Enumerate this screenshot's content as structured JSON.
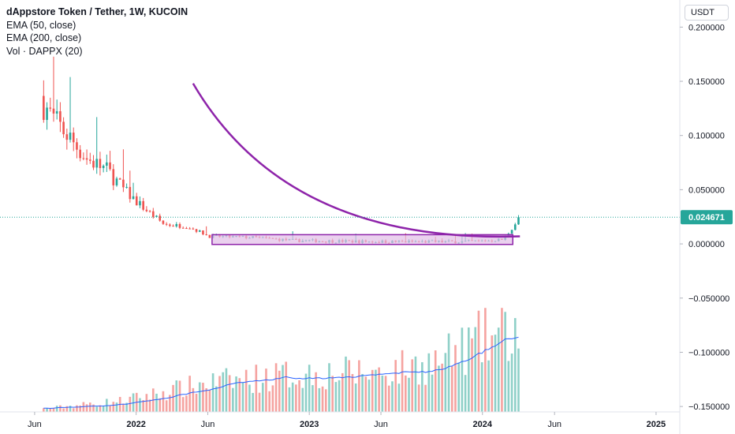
{
  "header": {
    "title": "dAppstore Token / Tether, 1W, KUCOIN",
    "indicators": [
      "EMA (50, close)",
      "EMA (200, close)",
      "Vol · DAPPX (20)"
    ],
    "currency_button": "USDT"
  },
  "colors": {
    "up": "#26a69a",
    "down": "#ef5350",
    "volume_up": "#8fd0c8",
    "volume_down": "#f5a3a0",
    "volume_ma": "#2962ff",
    "curve": "#8e24aa",
    "box_fill": "#e1bee7",
    "box_stroke": "#8e24aa",
    "last_price": "#26a69a"
  },
  "chart_data": {
    "type": "candlestick",
    "ylim": [
      -0.155,
      0.225
    ],
    "y_ticks": [
      "0.200000",
      "0.150000",
      "0.100000",
      "0.050000",
      "0.000000",
      "−0.050000",
      "−0.100000",
      "−0.150000"
    ],
    "y_tick_values": [
      0.2,
      0.15,
      0.1,
      0.05,
      0.0,
      -0.05,
      -0.1,
      -0.15
    ],
    "x_ticks": [
      {
        "label": "Jun",
        "date": "2021-06-01",
        "bold": false
      },
      {
        "label": "2022",
        "date": "2022-01-01",
        "bold": true
      },
      {
        "label": "Jun",
        "date": "2022-06-01",
        "bold": false
      },
      {
        "label": "2023",
        "date": "2023-01-01",
        "bold": true
      },
      {
        "label": "Jun",
        "date": "2023-06-01",
        "bold": false
      },
      {
        "label": "2024",
        "date": "2024-01-01",
        "bold": true
      },
      {
        "label": "Jun",
        "date": "2024-06-01",
        "bold": false
      },
      {
        "label": "2025",
        "date": "2025-01-01",
        "bold": true
      }
    ],
    "x_range": [
      "2021-03-20",
      "2025-02-20"
    ],
    "last_price": "0.024671",
    "last_price_value": 0.024671,
    "price_anchors": [
      {
        "date": "2021-06-20",
        "close": 0.13
      },
      {
        "date": "2021-07-10",
        "close": 0.115
      },
      {
        "date": "2021-08-10",
        "close": 0.1
      },
      {
        "date": "2021-09-20",
        "close": 0.078
      },
      {
        "date": "2021-11-01",
        "close": 0.068
      },
      {
        "date": "2021-12-10",
        "close": 0.048
      },
      {
        "date": "2022-01-20",
        "close": 0.032
      },
      {
        "date": "2022-03-01",
        "close": 0.018
      },
      {
        "date": "2022-04-20",
        "close": 0.016
      },
      {
        "date": "2022-06-05",
        "close": 0.007
      },
      {
        "date": "2022-09-01",
        "close": 0.006
      },
      {
        "date": "2022-12-01",
        "close": 0.003
      },
      {
        "date": "2023-06-01",
        "close": 0.002
      },
      {
        "date": "2023-12-01",
        "close": 0.002
      },
      {
        "date": "2024-02-15",
        "close": 0.004
      },
      {
        "date": "2024-03-20",
        "close": 0.024671
      }
    ],
    "volume_anchors": [
      {
        "date": "2021-06-01",
        "v": 0.02
      },
      {
        "date": "2021-12-01",
        "v": 0.1
      },
      {
        "date": "2022-06-01",
        "v": 0.26
      },
      {
        "date": "2022-12-01",
        "v": 0.34
      },
      {
        "date": "2023-06-01",
        "v": 0.36
      },
      {
        "date": "2023-10-01",
        "v": 0.45
      },
      {
        "date": "2024-01-01",
        "v": 0.65
      },
      {
        "date": "2024-03-20",
        "v": 0.72
      }
    ],
    "annotations": {
      "accumulation_box": {
        "start": "2022-06-10",
        "end": "2024-03-05",
        "top": 0.0085,
        "bottom": -0.0005
      },
      "curve": {
        "start": {
          "date": "2022-05-01",
          "y": 0.148
        },
        "control": {
          "date": "2022-11-15",
          "y": 0.0
        },
        "end": {
          "date": "2024-03-20",
          "y": 0.007
        }
      }
    }
  }
}
